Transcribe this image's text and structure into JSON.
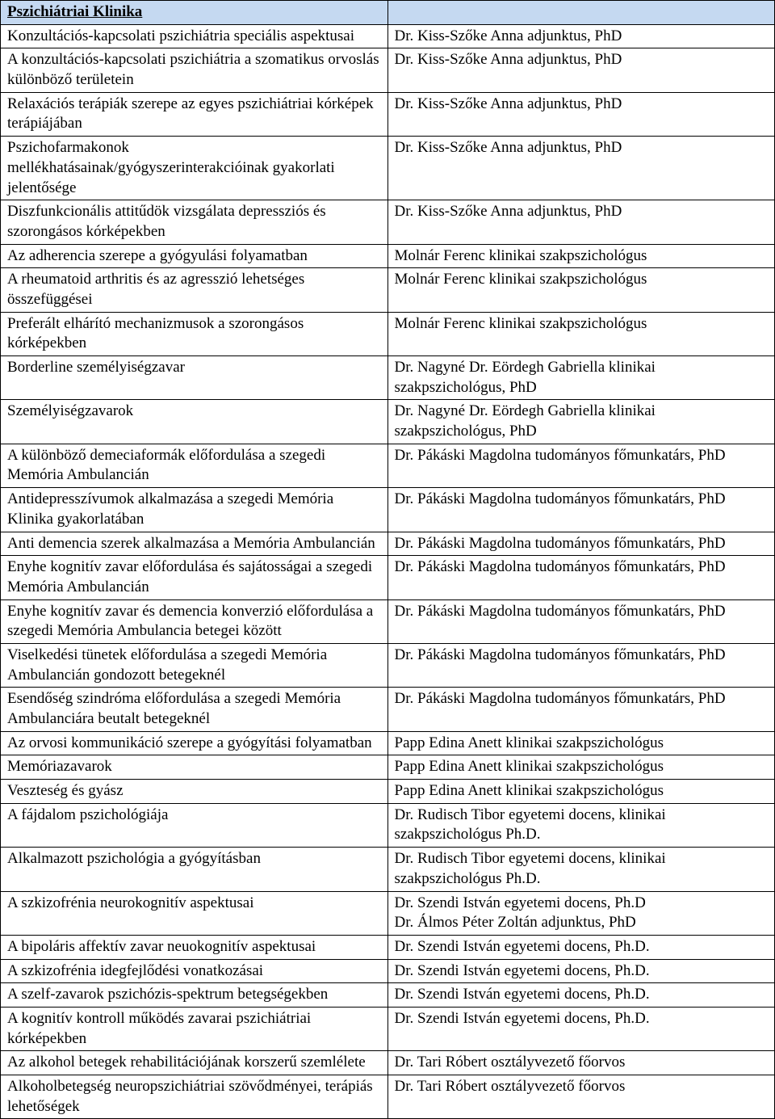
{
  "table": {
    "header_bg": "#c5d9f1",
    "border_color": "#000000",
    "header_label": "Pszichiátriai Klinika",
    "rows": [
      {
        "topic": "Konzultációs-kapcsolati pszichiátria speciális aspektusai",
        "person": "Dr. Kiss-Szőke Anna adjunktus, PhD"
      },
      {
        "topic": "A konzultációs-kapcsolati pszichiátria a szomatikus orvoslás különböző területein",
        "person": "Dr. Kiss-Szőke Anna adjunktus, PhD"
      },
      {
        "topic": "Relaxációs terápiák szerepe az egyes pszichiátriai kórképek terápiájában",
        "person": "Dr. Kiss-Szőke Anna adjunktus, PhD"
      },
      {
        "topic": "Pszichofarmakonok mellékhatásainak/gyógyszerinterakcióinak gyakorlati jelentősége",
        "person": "Dr. Kiss-Szőke Anna adjunktus, PhD"
      },
      {
        "topic": "Diszfunkcionális attitűdök vizsgálata depressziós és szorongásos kórképekben",
        "person": "Dr. Kiss-Szőke Anna adjunktus, PhD"
      },
      {
        "topic": "Az adherencia szerepe a gyógyulási folyamatban",
        "person": "Molnár Ferenc klinikai szakpszichológus"
      },
      {
        "topic": "A rheumatoid arthritis és az agresszió lehetséges összefüggései",
        "person": "Molnár Ferenc klinikai szakpszichológus"
      },
      {
        "topic": "Preferált elhárító mechanizmusok a szorongásos kórképekben",
        "person": "Molnár Ferenc klinikai szakpszichológus"
      },
      {
        "topic": "Borderline személyiségzavar",
        "person": "Dr. Nagyné Dr. Eördegh Gabriella klinikai szakpszichológus,  PhD"
      },
      {
        "topic": "Személyiségzavarok",
        "person": "Dr. Nagyné Dr. Eördegh Gabriella klinikai szakpszichológus,  PhD"
      },
      {
        "topic": "A különböző demeciaformák előfordulása a szegedi Memória Ambulancián",
        "person": "Dr. Pákáski Magdolna tudományos főmunkatárs, PhD"
      },
      {
        "topic": "Antidepresszívumok alkalmazása a szegedi Memória Klinika gyakorlatában",
        "person": "Dr. Pákáski Magdolna tudományos főmunkatárs, PhD"
      },
      {
        "topic": "Anti demencia szerek alkalmazása a Memória Ambulancián",
        "person": "Dr. Pákáski Magdolna tudományos főmunkatárs, PhD",
        "justify": true
      },
      {
        "topic": "Enyhe kognitív zavar előfordulása és sajátosságai a szegedi Memória Ambulancián",
        "person": "Dr. Pákáski Magdolna tudományos főmunkatárs, PhD"
      },
      {
        "topic": "Enyhe kognitív zavar és demencia konverzió előfordulása a szegedi Memória Ambulancia betegei között",
        "person": "Dr. Pákáski Magdolna tudományos főmunkatárs, PhD"
      },
      {
        "topic": "Viselkedési tünetek előfordulása a szegedi Memória Ambulancián gondozott betegeknél",
        "person": "Dr. Pákáski Magdolna tudományos főmunkatárs, PhD"
      },
      {
        "topic": "Esendőség szindróma előfordulása a szegedi Memória Ambulanciára beutalt betegeknél",
        "person": "Dr. Pákáski Magdolna tudományos főmunkatárs, PhD"
      },
      {
        "topic": "Az orvosi kommunikáció szerepe a gyógyítási folyamatban",
        "person": "Papp Edina Anett klinikai szakpszichológus"
      },
      {
        "topic": "Memóriazavarok",
        "person": "Papp Edina Anett klinikai szakpszichológus"
      },
      {
        "topic": "Veszteség és gyász",
        "person": "Papp Edina Anett klinikai szakpszichológus"
      },
      {
        "topic": "A fájdalom pszichológiája",
        "person": "Dr. Rudisch Tibor egyetemi docens, klinikai szakpszichológus Ph.D."
      },
      {
        "topic": "Alkalmazott pszichológia a gyógyításban",
        "person": "Dr. Rudisch Tibor egyetemi docens, klinikai szakpszichológus Ph.D."
      },
      {
        "topic": "A szkizofrénia neurokognitív aspektusai",
        "person": "Dr. Szendi István egyetemi docens, Ph.D\nDr. Álmos Péter Zoltán adjunktus, PhD"
      },
      {
        "topic": "A bipoláris affektív zavar neuokognitív aspektusai",
        "person": "Dr. Szendi István egyetemi docens, Ph.D."
      },
      {
        "topic": "A szkizofrénia idegfejlődési vonatkozásai",
        "person": "Dr. Szendi István egyetemi docens, Ph.D."
      },
      {
        "topic": "A szelf-zavarok pszichózis-spektrum betegségekben",
        "person": "Dr. Szendi István egyetemi docens, Ph.D."
      },
      {
        "topic": "A kognitív kontroll működés zavarai pszichiátriai kórképekben",
        "person": "Dr. Szendi István egyetemi docens, Ph.D."
      },
      {
        "topic": "Az alkohol betegek rehabilitációjának korszerű szemlélete",
        "person": "Dr. Tari Róbert osztályvezető főorvos"
      },
      {
        "topic": "Alkoholbetegség neuropszichiátriai szövődményei, terápiás lehetőségek",
        "person": "Dr. Tari Róbert osztályvezető főorvos"
      }
    ]
  }
}
